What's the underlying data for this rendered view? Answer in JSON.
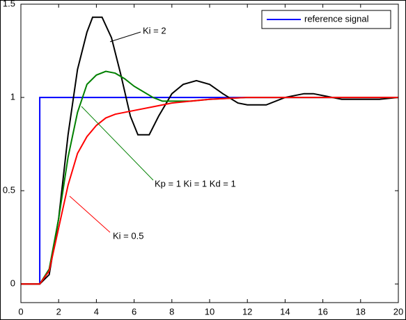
{
  "chart_data": {
    "type": "line",
    "series": [
      {
        "name": "reference signal",
        "color": "#0000ff",
        "x": [
          0,
          1,
          1,
          20
        ],
        "values": [
          0,
          0,
          1,
          1
        ]
      },
      {
        "color": "#000000",
        "x": [
          0,
          1,
          1.5,
          2,
          2.5,
          3,
          3.5,
          3.8,
          4.3,
          4.8,
          5.3,
          5.8,
          6.2,
          6.8,
          7.3,
          8,
          8.6,
          9.3,
          10,
          10.7,
          11.5,
          12,
          13,
          14,
          15,
          15.5,
          16,
          17,
          19,
          20
        ],
        "values": [
          0,
          0,
          0.05,
          0.35,
          0.8,
          1.15,
          1.35,
          1.43,
          1.43,
          1.32,
          1.12,
          0.9,
          0.8,
          0.8,
          0.9,
          1.02,
          1.07,
          1.09,
          1.07,
          1.02,
          0.97,
          0.96,
          0.96,
          1,
          1.02,
          1.02,
          1.01,
          0.99,
          0.99,
          1
        ]
      },
      {
        "color": "#008000",
        "x": [
          0,
          1,
          1.5,
          2,
          2.5,
          3,
          3.5,
          4,
          4.5,
          5,
          5.5,
          6,
          7,
          7.5,
          8,
          9,
          10,
          12,
          20
        ],
        "values": [
          0,
          0,
          0.08,
          0.35,
          0.68,
          0.92,
          1.07,
          1.12,
          1.14,
          1.13,
          1.1,
          1.06,
          1,
          0.98,
          0.98,
          0.98,
          0.99,
          1,
          1
        ]
      },
      {
        "color": "#ff0000",
        "x": [
          0,
          1,
          1.5,
          2,
          2.5,
          3,
          3.5,
          4,
          4.5,
          5,
          6,
          7,
          8,
          9,
          10,
          12,
          20
        ],
        "values": [
          0,
          0,
          0.07,
          0.3,
          0.53,
          0.7,
          0.79,
          0.85,
          0.89,
          0.91,
          0.93,
          0.95,
          0.97,
          0.98,
          0.99,
          1,
          1
        ]
      }
    ],
    "annotations": [
      "Ki = 2",
      "Kp = 1  Ki = 1  Kd = 1",
      "Ki = 0.5"
    ],
    "xlim": [
      0,
      20
    ],
    "xticks": [
      0,
      2,
      4,
      6,
      8,
      10,
      12,
      14,
      16,
      18,
      20
    ],
    "ylim": [
      -0.1,
      1.5
    ],
    "yticks": [
      0,
      0.5,
      1,
      1.5
    ],
    "legend": "top-right"
  }
}
